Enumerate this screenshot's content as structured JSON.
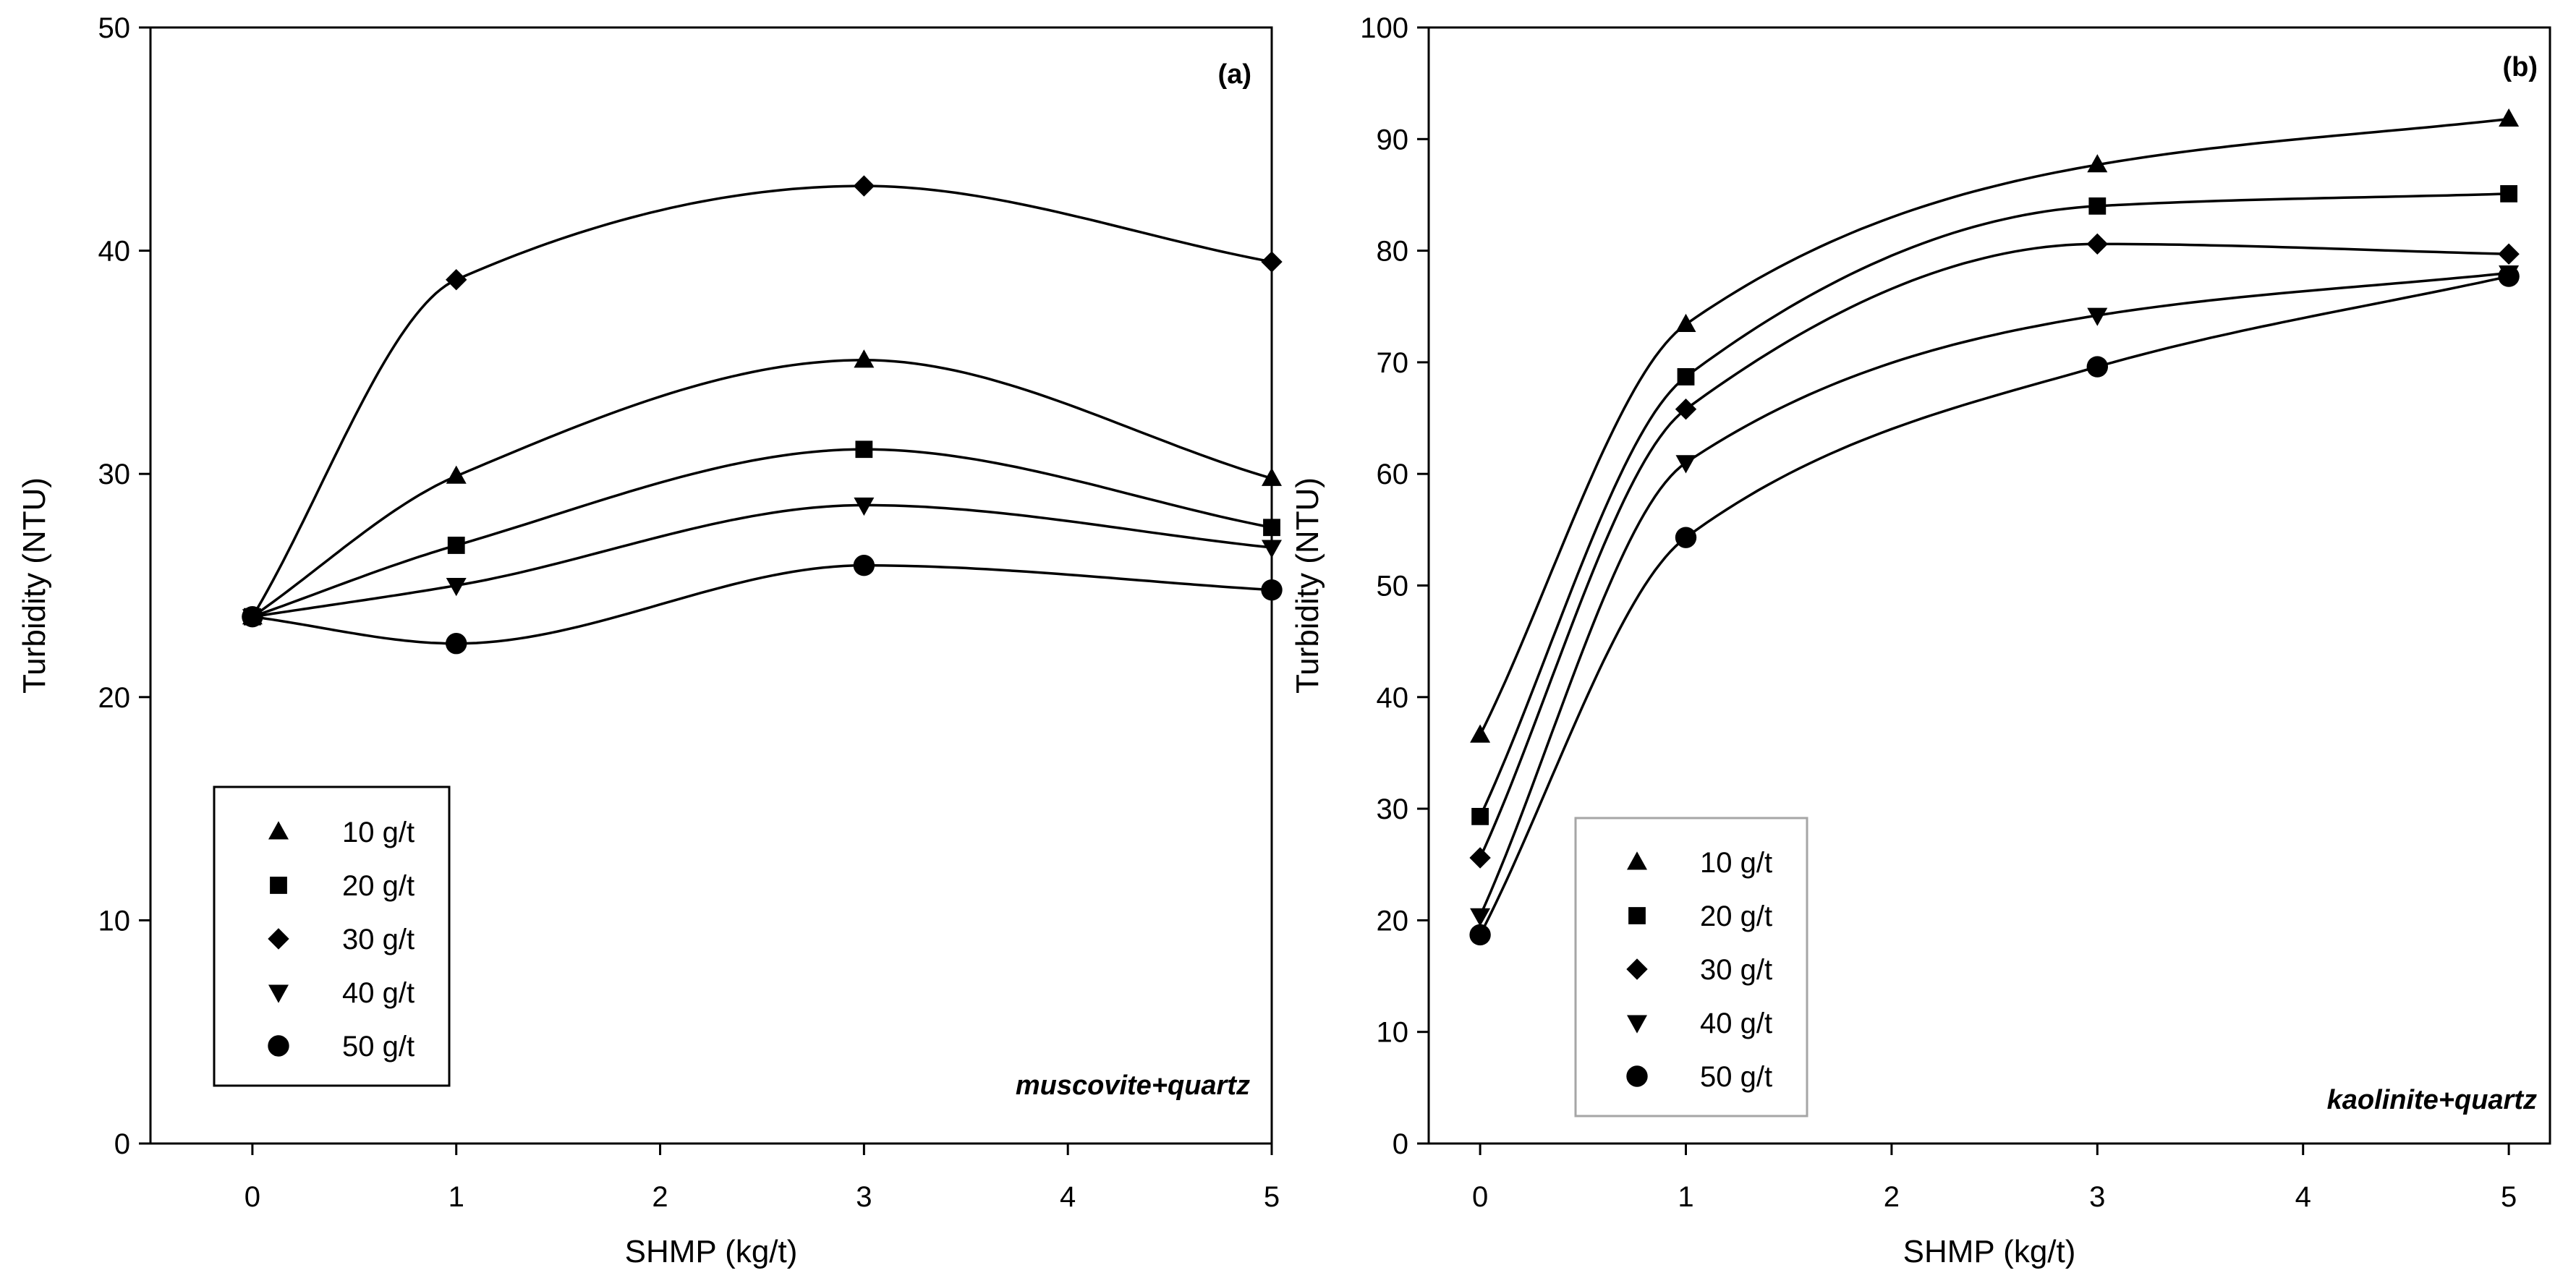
{
  "chart_data": [
    {
      "type": "scatter",
      "panel_label": "(a)",
      "annotation": "muscovite+quartz",
      "xlabel": "SHMP (kg/t)",
      "ylabel": "Turbidity (NTU)",
      "xlim": [
        -0.5,
        5
      ],
      "ylim": [
        0,
        50
      ],
      "xticks": [
        "0",
        "1",
        "2",
        "3",
        "4",
        "5"
      ],
      "yticks": [
        "0",
        "10",
        "20",
        "30",
        "40",
        "50"
      ],
      "legend_location": "lower-left",
      "x": [
        0,
        1,
        3,
        5
      ],
      "series": [
        {
          "name": "10 g/t",
          "marker": "triangle-up",
          "values": [
            23.6,
            29.9,
            35.1,
            29.8
          ]
        },
        {
          "name": "20 g/t",
          "marker": "square",
          "values": [
            23.6,
            26.8,
            31.1,
            27.6
          ]
        },
        {
          "name": "30 g/t",
          "marker": "diamond",
          "values": [
            23.6,
            38.7,
            42.9,
            39.5
          ]
        },
        {
          "name": "40 g/t",
          "marker": "triangle-down",
          "values": [
            23.6,
            25.0,
            28.6,
            26.7
          ]
        },
        {
          "name": "50 g/t",
          "marker": "circle",
          "values": [
            23.6,
            22.4,
            25.9,
            24.8
          ]
        }
      ]
    },
    {
      "type": "scatter",
      "panel_label": "(b)",
      "annotation": "kaolinite+quartz",
      "xlabel": "SHMP (kg/t)",
      "ylabel": "Turbidity (NTU)",
      "xlim": [
        -0.25,
        5.2
      ],
      "ylim": [
        0,
        100
      ],
      "xticks": [
        "0",
        "1",
        "2",
        "3",
        "4",
        "5"
      ],
      "yticks": [
        "0",
        "10",
        "20",
        "30",
        "40",
        "50",
        "60",
        "70",
        "80",
        "90",
        "100"
      ],
      "legend_location": "lower-left",
      "x": [
        0,
        1,
        3,
        5
      ],
      "series": [
        {
          "name": "10 g/t",
          "marker": "triangle-up",
          "values": [
            36.6,
            73.4,
            87.7,
            91.8
          ]
        },
        {
          "name": "20 g/t",
          "marker": "square",
          "values": [
            29.3,
            68.7,
            84.0,
            85.1
          ]
        },
        {
          "name": "30 g/t",
          "marker": "diamond",
          "values": [
            25.6,
            65.8,
            80.6,
            79.7
          ]
        },
        {
          "name": "40 g/t",
          "marker": "triangle-down",
          "values": [
            20.4,
            61.0,
            74.2,
            78.0
          ]
        },
        {
          "name": "50 g/t",
          "marker": "circle",
          "values": [
            18.7,
            54.3,
            69.6,
            77.7
          ]
        }
      ]
    }
  ]
}
